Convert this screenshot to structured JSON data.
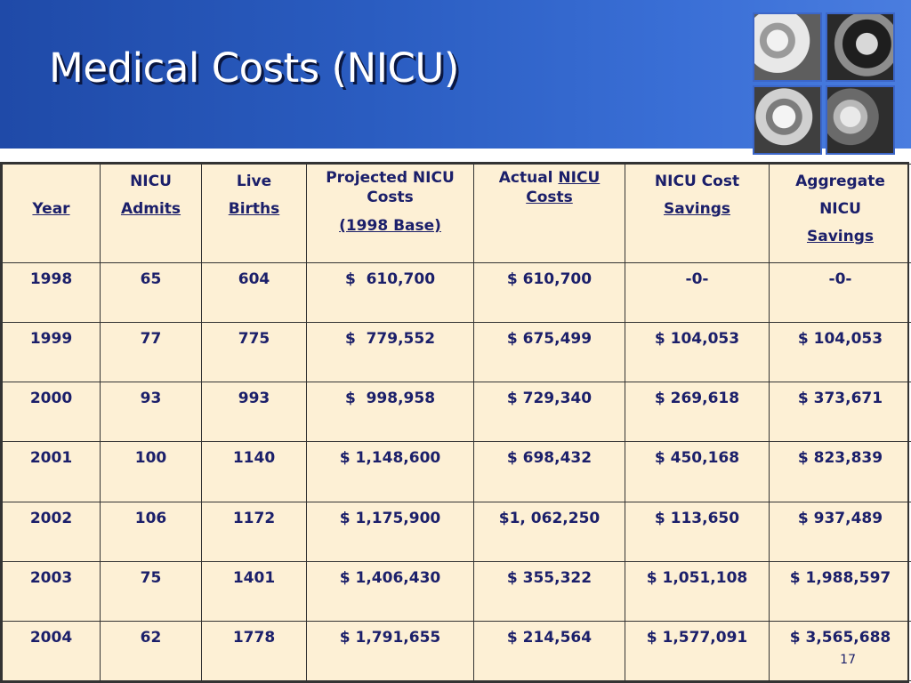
{
  "slide": {
    "title": "Medical Costs (NICU)",
    "page_number": "17"
  },
  "table": {
    "headers": {
      "year": "Year",
      "admits_line1": "NICU",
      "admits_line2": "Admits",
      "births_line1": "Live",
      "births_line2": "Births",
      "projected_line1": "Projected NICU Costs",
      "projected_line2": "(1998 Base)",
      "actual_prefix": "Actual ",
      "actual_link": "NICU Costs",
      "savings_line1": "NICU Cost",
      "savings_line2": "Savings",
      "aggregate_line1": "Aggregate",
      "aggregate_line2": "NICU",
      "aggregate_line3": "Savings"
    },
    "rows": [
      [
        "1998",
        "65",
        "604",
        "$  610,700",
        "$ 610,700",
        "-0-",
        "-0-"
      ],
      [
        "1999",
        "77",
        "775",
        "$  779,552",
        "$ 675,499",
        "$ 104,053",
        "$ 104,053"
      ],
      [
        "2000",
        "93",
        "993",
        "$  998,958",
        "$ 729,340",
        "$ 269,618",
        "$ 373,671"
      ],
      [
        "2001",
        "100",
        "1140",
        "$ 1,148,600",
        "$ 698,432",
        "$ 450,168",
        "$ 823,839"
      ],
      [
        "2002",
        "106",
        "1172",
        "$ 1,175,900",
        "$1, 062,250",
        "$ 113,650",
        "$ 937,489"
      ],
      [
        "2003",
        "75",
        "1401",
        "$ 1,406,430",
        "$ 355,322",
        "$ 1,051,108",
        "$ 1,988,597"
      ],
      [
        "2004",
        "62",
        "1778",
        "$ 1,791,655",
        "$ 214,564",
        "$ 1,577,091",
        "$ 3,565,688"
      ]
    ]
  },
  "colors": {
    "header_band": "#2a5cc0",
    "table_fill": "#fdf0d5",
    "text": "#1b1f6a"
  }
}
